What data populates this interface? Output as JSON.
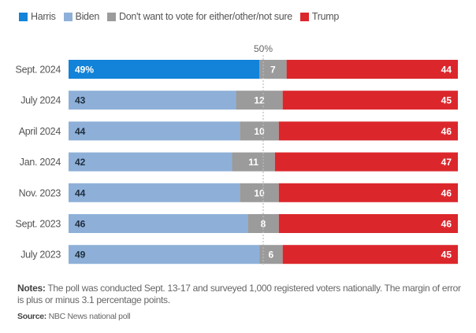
{
  "chart_data": {
    "type": "bar",
    "orientation": "horizontal",
    "stacked": true,
    "normalized_percent": true,
    "xlim": [
      0,
      100
    ],
    "reference_line": {
      "value": 50,
      "label": "50%"
    },
    "legend": [
      {
        "key": "harris",
        "label": "Harris",
        "color": "#1283d8"
      },
      {
        "key": "biden",
        "label": "Biden",
        "color": "#8eb0d8"
      },
      {
        "key": "other",
        "label": "Don't want to vote for either/other/not sure",
        "color": "#9b9b9b"
      },
      {
        "key": "trump",
        "label": "Trump",
        "color": "#db272c"
      }
    ],
    "rows": [
      {
        "label": "Sept. 2024",
        "democrat": "harris",
        "dem": 49,
        "other": 7,
        "trump": 44,
        "dem_label": "49%",
        "other_label": "7",
        "trump_label": "44"
      },
      {
        "label": "July 2024",
        "democrat": "biden",
        "dem": 43,
        "other": 12,
        "trump": 45,
        "dem_label": "43",
        "other_label": "12",
        "trump_label": "45"
      },
      {
        "label": "April 2024",
        "democrat": "biden",
        "dem": 44,
        "other": 10,
        "trump": 46,
        "dem_label": "44",
        "other_label": "10",
        "trump_label": "46"
      },
      {
        "label": "Jan. 2024",
        "democrat": "biden",
        "dem": 42,
        "other": 11,
        "trump": 47,
        "dem_label": "42",
        "other_label": "11",
        "trump_label": "47"
      },
      {
        "label": "Nov. 2023",
        "democrat": "biden",
        "dem": 44,
        "other": 10,
        "trump": 46,
        "dem_label": "44",
        "other_label": "10",
        "trump_label": "46"
      },
      {
        "label": "Sept. 2023",
        "democrat": "biden",
        "dem": 46,
        "other": 8,
        "trump": 46,
        "dem_label": "46",
        "other_label": "8",
        "trump_label": "46"
      },
      {
        "label": "July 2023",
        "democrat": "biden",
        "dem": 49,
        "other": 6,
        "trump": 45,
        "dem_label": "49",
        "other_label": "6",
        "trump_label": "45"
      }
    ]
  },
  "footer": {
    "notes_label": "Notes:",
    "notes_text": "The poll was conducted Sept. 13-17 and surveyed 1,000 registered voters nationally. The margin of error is plus or minus 3.1 percentage points.",
    "source_label": "Source:",
    "source_text": "NBC News national poll"
  }
}
